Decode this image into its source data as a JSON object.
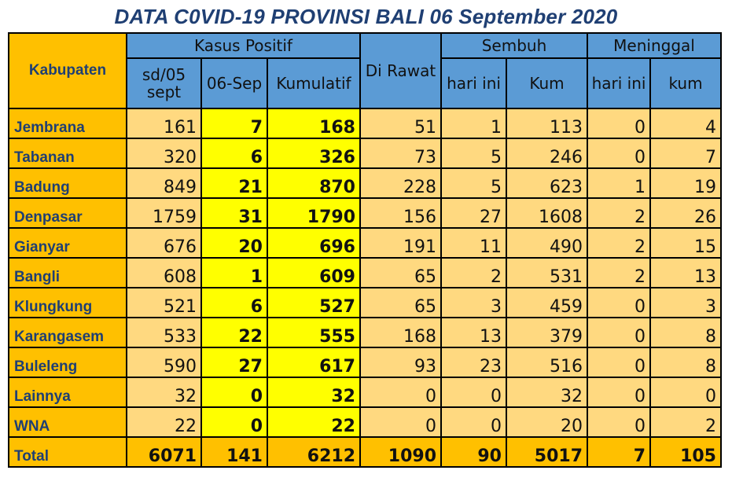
{
  "title": "DATA C0VID-19 PROVINSI BALI 06 September 2020",
  "headers": {
    "kabupaten": "Kabupaten",
    "kasus_positif": "Kasus Positif",
    "sd05": "sd/05 sept",
    "sep06": "06-Sep",
    "kumulatif": "Kumulatif",
    "dirawat": "Di Rawat",
    "sembuh": "Sembuh",
    "sembuh_hari": "hari ini",
    "sembuh_kum": "Kum",
    "meninggal": "Meninggal",
    "meninggal_hari": "hari ini",
    "meninggal_kum": "kum"
  },
  "rows": [
    {
      "name": "Jembrana",
      "v": [
        "161",
        "7",
        "168",
        "51",
        "1",
        "113",
        "0",
        "4"
      ]
    },
    {
      "name": "Tabanan",
      "v": [
        "320",
        "6",
        "326",
        "73",
        "5",
        "246",
        "0",
        "7"
      ]
    },
    {
      "name": "Badung",
      "v": [
        "849",
        "21",
        "870",
        "228",
        "5",
        "623",
        "1",
        "19"
      ]
    },
    {
      "name": "Denpasar",
      "v": [
        "1759",
        "31",
        "1790",
        "156",
        "27",
        "1608",
        "2",
        "26"
      ]
    },
    {
      "name": "Gianyar",
      "v": [
        "676",
        "20",
        "696",
        "191",
        "11",
        "490",
        "2",
        "15"
      ]
    },
    {
      "name": "Bangli",
      "v": [
        "608",
        "1",
        "609",
        "65",
        "2",
        "531",
        "2",
        "13"
      ]
    },
    {
      "name": "Klungkung",
      "v": [
        "521",
        "6",
        "527",
        "65",
        "3",
        "459",
        "0",
        "3"
      ]
    },
    {
      "name": "Karangasem",
      "v": [
        "533",
        "22",
        "555",
        "168",
        "13",
        "379",
        "0",
        "8"
      ]
    },
    {
      "name": "Buleleng",
      "v": [
        "590",
        "27",
        "617",
        "93",
        "23",
        "516",
        "0",
        "8"
      ]
    },
    {
      "name": "Lainnya",
      "v": [
        "32",
        "0",
        "32",
        "0",
        "0",
        "32",
        "0",
        "0"
      ]
    },
    {
      "name": "WNA",
      "v": [
        "22",
        "0",
        "22",
        "0",
        "0",
        "20",
        "0",
        "2"
      ]
    }
  ],
  "total": {
    "name": "Total",
    "v": [
      "6071",
      "141",
      "6212",
      "1090",
      "90",
      "5017",
      "7",
      "105"
    ]
  },
  "colors": {
    "header_blue": "#5b9bd5",
    "kabupaten_orange": "#ffc000",
    "cell_light": "#ffd980",
    "highlight_yellow": "#ffff00",
    "title_navy": "#1f3f73"
  }
}
